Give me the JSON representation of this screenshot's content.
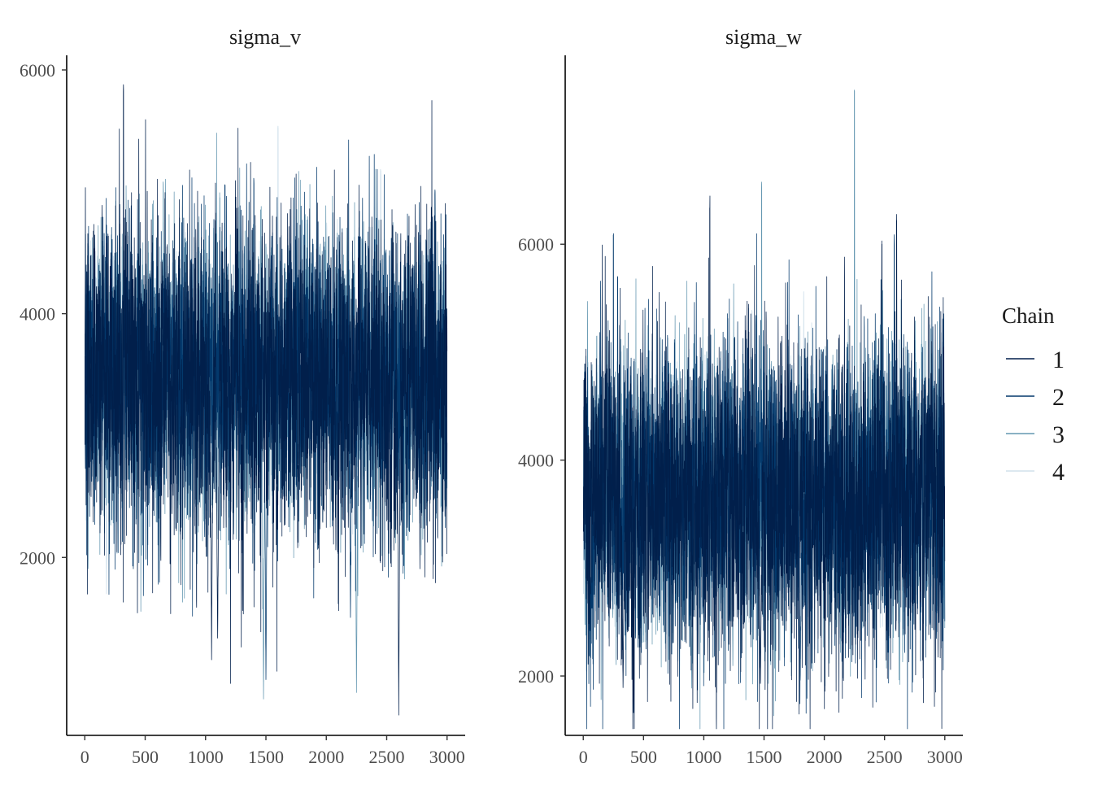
{
  "chart_data": {
    "type": "line",
    "chart_kind": "MCMC trace plot",
    "legend": {
      "title": "Chain",
      "position": "right",
      "entries": [
        {
          "label": "1",
          "color": "#011f4b"
        },
        {
          "label": "2",
          "color": "#03396c"
        },
        {
          "label": "3",
          "color": "#6497b1"
        },
        {
          "label": "4",
          "color": "#d1e1ec"
        }
      ]
    },
    "grid": false,
    "panels": [
      {
        "title": "sigma_v",
        "x_ticks": [
          0,
          500,
          1000,
          1500,
          2000,
          2500,
          3000
        ],
        "y_ticks": [
          2000,
          4000,
          6000
        ],
        "xlim": [
          -150,
          3150
        ],
        "ylim": [
          540,
          6120
        ],
        "iterations": 3000,
        "series": [
          {
            "chain": "1",
            "mean": 3450,
            "sd": 650,
            "dips": [
              [
                1050,
                1100
              ],
              [
                1100,
                1200
              ],
              [
                2600,
                700
              ]
            ],
            "spikes": [
              [
                320,
                5880
              ]
            ]
          },
          {
            "chain": "2",
            "mean": 3500,
            "sd": 600,
            "dips": [
              [
                1500,
                900
              ],
              [
                2200,
                1500
              ]
            ],
            "spikes": [
              [
                1400,
                5150
              ],
              [
                2900,
                5050
              ]
            ]
          },
          {
            "chain": "3",
            "mean": 3500,
            "sd": 560,
            "dips": [
              [
                1480,
                750
              ],
              [
                2250,
                770
              ]
            ],
            "spikes": [
              [
                650,
                5100
              ]
            ]
          },
          {
            "chain": "4",
            "mean": 3550,
            "sd": 420,
            "dips": [
              [
                180,
                1700
              ]
            ],
            "spikes": [
              [
                1600,
                5620
              ],
              [
                2450,
                5250
              ]
            ]
          }
        ]
      },
      {
        "title": "sigma_w",
        "x_ticks": [
          0,
          500,
          1000,
          1500,
          2000,
          2500,
          3000
        ],
        "y_ticks": [
          2000,
          4000,
          6000
        ],
        "xlim": [
          -150,
          3150
        ],
        "ylim": [
          1450,
          7750
        ],
        "iterations": 3000,
        "series": [
          {
            "chain": "1",
            "mean": 3650,
            "sd": 720,
            "dips": [
              [
                330,
                1800
              ],
              [
                1470,
                1800
              ]
            ],
            "spikes": [
              [
                1050,
                6450
              ],
              [
                2600,
                6300
              ]
            ]
          },
          {
            "chain": "2",
            "mean": 3650,
            "sd": 700,
            "dips": [
              [
                1800,
                1850
              ]
            ],
            "spikes": [
              [
                250,
                6100
              ],
              [
                2580,
                6100
              ]
            ]
          },
          {
            "chain": "3",
            "mean": 3700,
            "sd": 620,
            "dips": [
              [
                900,
                1850
              ]
            ],
            "spikes": [
              [
                2250,
                7500
              ],
              [
                1480,
                6600
              ]
            ]
          },
          {
            "chain": "4",
            "mean": 3650,
            "sd": 480,
            "dips": [
              [
                800,
                1750
              ]
            ],
            "spikes": [
              [
                1400,
                5400
              ]
            ]
          }
        ]
      }
    ]
  }
}
